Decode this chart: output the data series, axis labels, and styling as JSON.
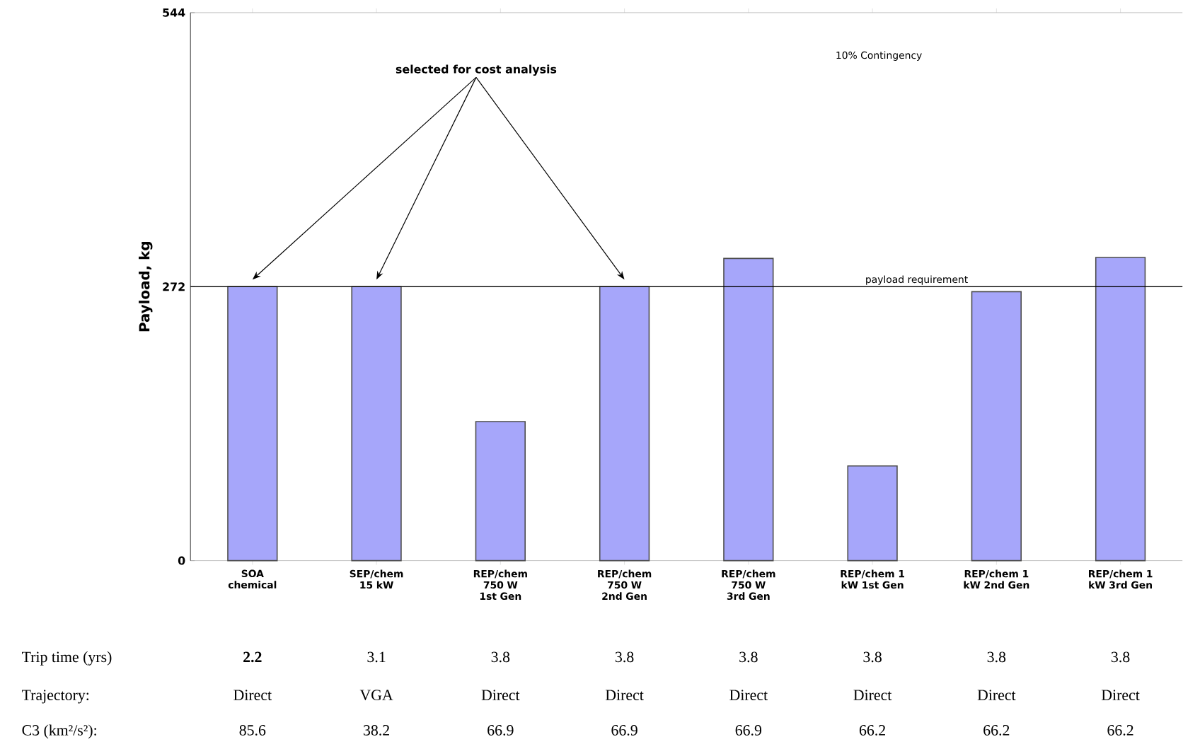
{
  "chart_data": {
    "type": "bar",
    "ylabel": "Payload, kg",
    "categories": [
      "SOA chemical",
      "SEP/chem 15 kW",
      "REP/chem 750 W 1st Gen",
      "REP/chem 750 W 2nd Gen",
      "REP/chem 750 W 3rd Gen",
      "REP/chem 1 kW 1st Gen",
      "REP/chem 1 kW 2nd Gen",
      "REP/chem 1 kW 3rd Gen"
    ],
    "values": [
      272,
      272,
      138,
      272,
      300,
      94,
      267,
      301
    ],
    "color": "#a6a6fa",
    "ylim": [
      0,
      544
    ],
    "yticks": [
      0,
      272,
      544
    ],
    "ref_lines": [
      {
        "axis": "y",
        "value": 272,
        "label": "payload requirement",
        "color": "#000000"
      }
    ],
    "annotations": [
      "selected for cost analysis",
      "10% Contingency",
      "Trip time (yrs)",
      "2.2",
      "3.1",
      "3.8",
      "3.8",
      "3.8",
      "3.8",
      "3.8",
      "3.8",
      "Trajectory:",
      "Direct",
      "VGA",
      "Direct",
      "Direct",
      "Direct",
      "Direct",
      "Direct",
      "Direct",
      "C3 (km²/s²):",
      "85.6",
      "38.2",
      "66.9",
      "66.9",
      "66.9",
      "66.2",
      "66.2",
      "66.2"
    ]
  }
}
